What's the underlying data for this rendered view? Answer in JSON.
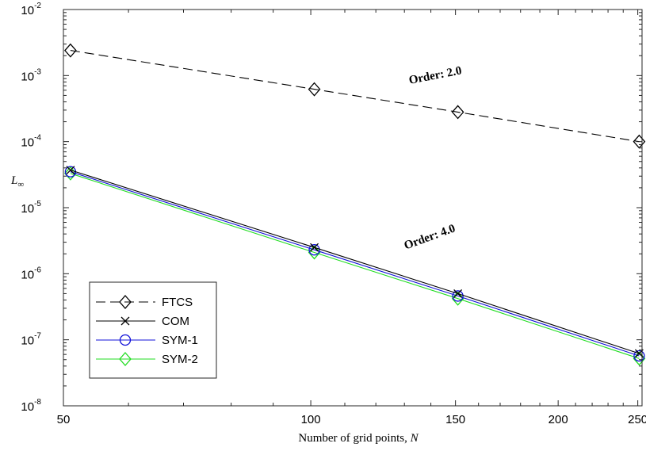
{
  "chart_data": {
    "type": "line",
    "xlabel": "Number of grid points,",
    "xlabel_var": "N",
    "ylabel": "L",
    "ylabel_sub": "∞",
    "x_scale": "log",
    "y_scale": "log",
    "xlim": [
      50,
      253
    ],
    "ylim": [
      1e-08,
      0.01
    ],
    "x_ticks": [
      50,
      100,
      150,
      200,
      250
    ],
    "y_ticks": [
      {
        "base": "10",
        "exp": "-8",
        "value": 1e-08
      },
      {
        "base": "10",
        "exp": "-7",
        "value": 1e-07
      },
      {
        "base": "10",
        "exp": "-6",
        "value": 1e-06
      },
      {
        "base": "10",
        "exp": "-5",
        "value": 1e-05
      },
      {
        "base": "10",
        "exp": "-4",
        "value": 0.0001
      },
      {
        "base": "10",
        "exp": "-3",
        "value": 0.001
      },
      {
        "base": "10",
        "exp": "-2",
        "value": 0.01
      }
    ],
    "grid": false,
    "legend_position": "bottom-left",
    "series": [
      {
        "name": "FTCS",
        "color": "#000000",
        "dash": "dashed",
        "marker": "diamond",
        "x": [
          51,
          101,
          151,
          251
        ],
        "y": [
          0.0024,
          0.00062,
          0.00028,
          0.0001
        ]
      },
      {
        "name": "COM",
        "color": "#000000",
        "dash": "solid",
        "marker": "x",
        "x": [
          51,
          101,
          151,
          251
        ],
        "y": [
          3.7e-05,
          2.5e-06,
          5e-07,
          6.2e-08
        ]
      },
      {
        "name": "SYM-1",
        "color": "#1010d8",
        "dash": "solid",
        "marker": "circle",
        "x": [
          51,
          101,
          151,
          251
        ],
        "y": [
          3.5e-05,
          2.3e-06,
          4.6e-07,
          5.7e-08
        ]
      },
      {
        "name": "SYM-2",
        "color": "#22dd22",
        "dash": "solid",
        "marker": "diamond",
        "x": [
          51,
          101,
          151,
          251
        ],
        "y": [
          3.3e-05,
          2.1e-06,
          4.2e-07,
          5.2e-08
        ]
      }
    ],
    "annotations": [
      {
        "text": "Order:  2.0",
        "x": 142,
        "y": 0.00089,
        "angle": -11
      },
      {
        "text": "Order:  4.0",
        "x": 140,
        "y": 3.2e-06,
        "angle": -20
      }
    ]
  }
}
